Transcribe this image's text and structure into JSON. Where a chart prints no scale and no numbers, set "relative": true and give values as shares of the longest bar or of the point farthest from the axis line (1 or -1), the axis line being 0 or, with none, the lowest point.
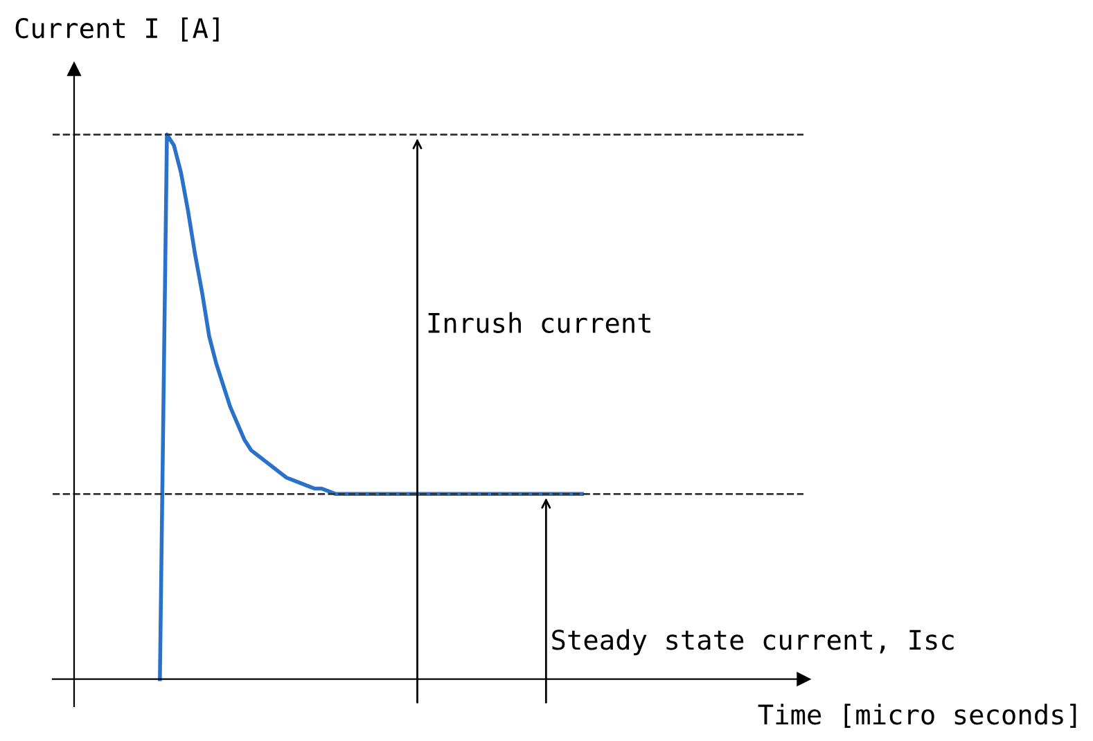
{
  "chart_data": {
    "type": "line",
    "relative": true,
    "ylabel": "Current I [A]",
    "categories": [
      null,
      null,
      null,
      null,
      null,
      null,
      null,
      null,
      null,
      null,
      null,
      null,
      null,
      null,
      null,
      null,
      null,
      null,
      null,
      null,
      null,
      null,
      null,
      null,
      null,
      null,
      null,
      null,
      null,
      null,
      null,
      null,
      null,
      null,
      null,
      null,
      null,
      null,
      null,
      null,
      null,
      null,
      null,
      null,
      null,
      null,
      null,
      null,
      null,
      null,
      null,
      null,
      null,
      null,
      null,
      null,
      null,
      null,
      null,
      null,
      null
    ],
    "series": [
      {
        "color": "#2a72c9",
        "values": [
          0,
          1,
          0.98,
          0.93,
          0.86,
          0.78,
          0.71,
          0.63,
          0.58,
          0.54,
          0.5,
          0.47,
          0.44,
          0.42,
          0.41,
          0.4,
          0.39,
          0.38,
          0.37,
          0.365,
          0.36,
          0.355,
          0.35,
          0.35,
          0.345,
          0.34,
          0.34,
          0.34,
          0.34,
          0.34,
          0.34,
          0.34,
          0.34,
          0.34,
          0.34,
          0.34,
          0.34,
          0.34,
          0.34,
          0.34,
          0.34,
          0.34,
          0.34,
          0.34,
          0.34,
          0.34,
          0.34,
          0.34,
          0.34,
          0.34,
          0.34,
          0.34,
          0.34,
          0.34,
          0.34,
          0.34,
          0.34,
          0.34,
          0.34,
          0.34,
          0.34
        ]
      }
    ],
    "ref_lines": [
      {
        "axis": "y",
        "value": 1,
        "color": "#333333",
        "line_style": "dashed"
      },
      {
        "axis": "y",
        "value": 0.34,
        "color": "#333333",
        "line_style": "dashed"
      }
    ],
    "annotations": [
      "Inrush current",
      "Steady state current, Isc",
      "Time [micro seconds]"
    ],
    "legend": false,
    "marker": "none",
    "line_style": "solid"
  }
}
